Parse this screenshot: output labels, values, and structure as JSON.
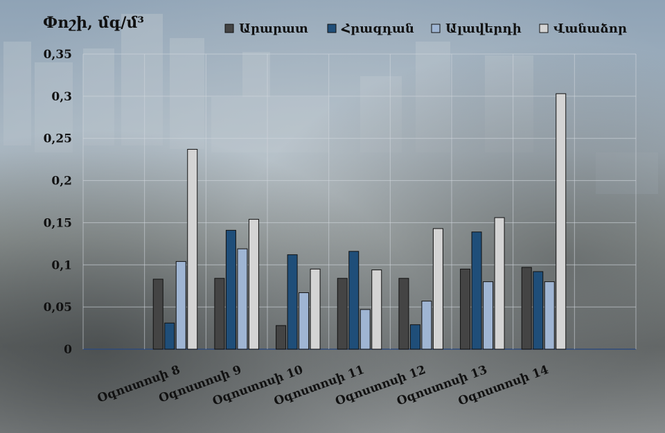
{
  "chart_data": {
    "type": "bar",
    "ylabel": "Փոշի, մգ/մ³",
    "xlabel": "",
    "title": "",
    "ylim": [
      0,
      0.35
    ],
    "yticks": [
      0,
      0.05,
      0.1,
      0.15,
      0.2,
      0.25,
      0.3,
      0.35
    ],
    "ytick_labels": [
      "0",
      "0,05",
      "0,1",
      "0,15",
      "0,2",
      "0,25",
      "0,3",
      "0,35"
    ],
    "categories": [
      "",
      "Օգոստոսի 8",
      "Օգոստոսի 9",
      "Օգոստոսի 10",
      "Օգոստոսի 11",
      "Օգոստոսի 12",
      "Օգոստոսի 13",
      "Օգոստոսի 14",
      ""
    ],
    "legend_position": "top",
    "grid": true,
    "series": [
      {
        "name": "Արարատ",
        "color": "#444444",
        "values": [
          null,
          0.083,
          0.084,
          0.028,
          0.084,
          0.084,
          0.095,
          0.097,
          null
        ]
      },
      {
        "name": "Հրազդան",
        "color": "#1f4e79",
        "values": [
          null,
          0.031,
          0.141,
          0.112,
          0.116,
          0.029,
          0.139,
          0.092,
          null
        ]
      },
      {
        "name": "Ալավերդի",
        "color": "#9fb5d3",
        "values": [
          null,
          0.104,
          0.119,
          0.067,
          0.047,
          0.057,
          0.08,
          0.08,
          null
        ]
      },
      {
        "name": "Վանաձոր",
        "color": "#d4d4d4",
        "values": [
          null,
          0.237,
          0.154,
          0.095,
          0.094,
          0.143,
          0.156,
          0.303,
          null
        ]
      }
    ]
  }
}
